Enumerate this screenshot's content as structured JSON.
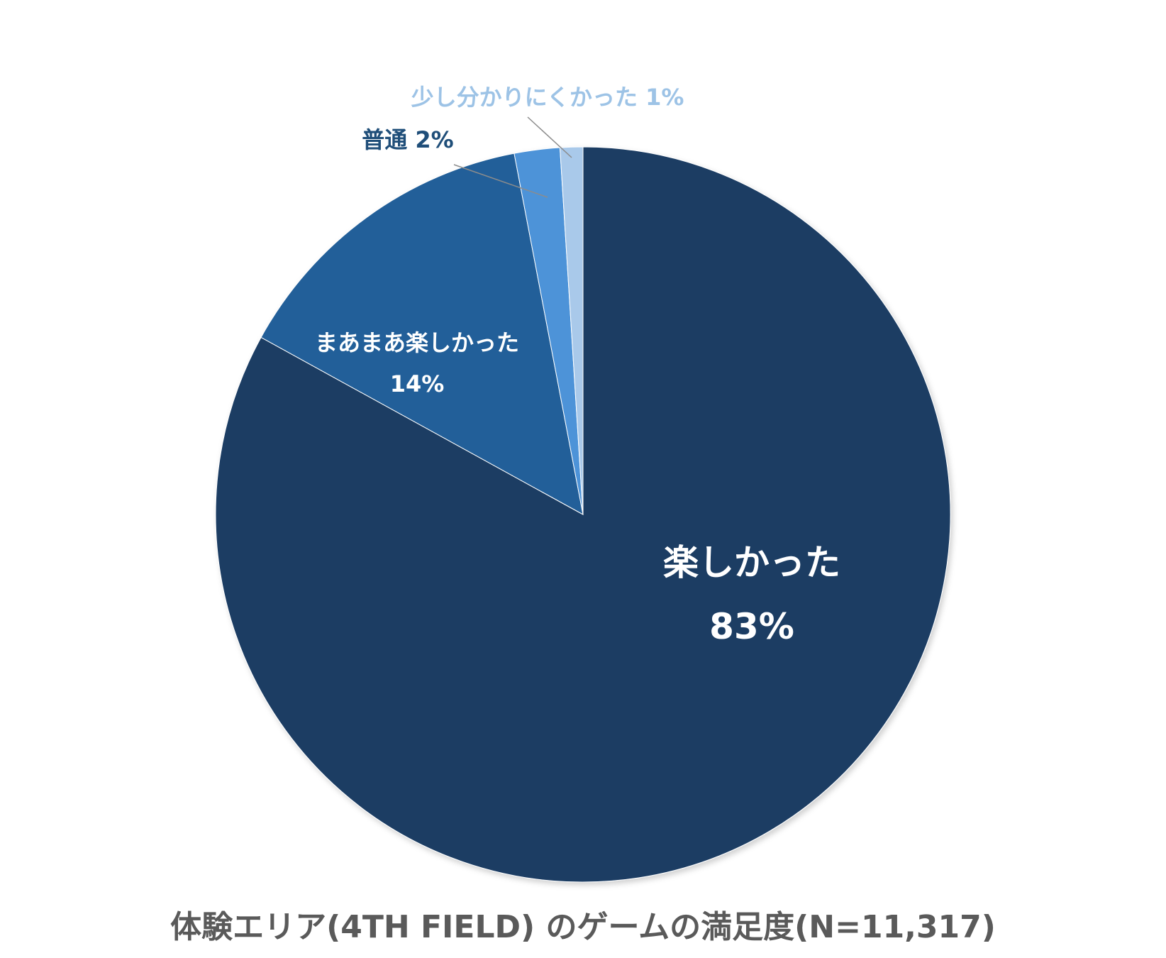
{
  "chart_data": {
    "type": "pie",
    "title": "体験エリア(4TH FIELD) のゲームの満足度(N=11,317)",
    "start_angle_deg": 0,
    "direction": "clockwise",
    "slices": [
      {
        "name": "楽しかった",
        "value": 83,
        "label": "83%",
        "color": "#1a3c64",
        "label_color": "#ffffff"
      },
      {
        "name": "まあまあ楽しかった",
        "value": 14,
        "label": "14%",
        "color": "#225f99",
        "label_color": "#ffffff"
      },
      {
        "name": "普通",
        "value": 2,
        "label": "2%",
        "color": "#4e93d8",
        "label_color": "#1f4e79"
      },
      {
        "name": "少し分かりにくかった",
        "value": 1,
        "label": "1%",
        "color": "#a9c9ea",
        "label_color": "#9dc3e6"
      }
    ],
    "legend": "none",
    "grid": false
  }
}
